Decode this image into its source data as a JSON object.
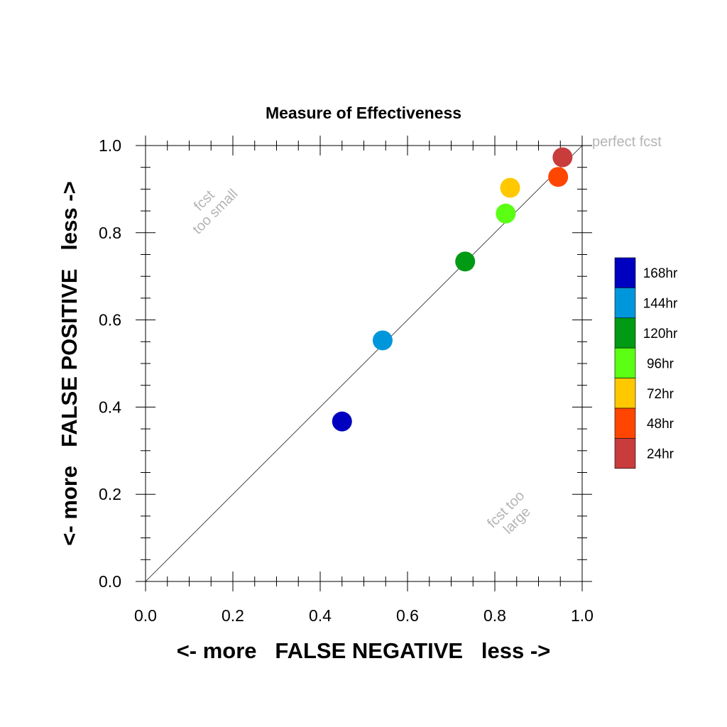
{
  "chart_data": {
    "type": "scatter",
    "title": "Measure of Effectiveness",
    "xlabel": "<- more   FALSE NEGATIVE   less ->",
    "ylabel": "<- more   FALSE POSITIVE   less ->",
    "xlim": [
      0.0,
      1.0
    ],
    "ylim": [
      0.0,
      1.0
    ],
    "xticks": [
      "0.0",
      "0.2",
      "0.4",
      "0.6",
      "0.8",
      "1.0"
    ],
    "yticks": [
      "0.0",
      "0.2",
      "0.4",
      "0.6",
      "0.8",
      "1.0"
    ],
    "grid": false,
    "reference_line": {
      "from": [
        0,
        0
      ],
      "to": [
        1,
        1
      ],
      "label": "perfect fcst"
    },
    "annotations": {
      "upper_left": [
        "fcst",
        "too small"
      ],
      "lower_right": [
        "fcst too",
        "large"
      ]
    },
    "legend_position": "right",
    "series": [
      {
        "name": "168hr",
        "color": "#0000c0",
        "x": 0.45,
        "y": 0.367
      },
      {
        "name": "144hr",
        "color": "#0096dc",
        "x": 0.543,
        "y": 0.553
      },
      {
        "name": "120hr",
        "color": "#009a14",
        "x": 0.732,
        "y": 0.734
      },
      {
        "name": "96hr",
        "color": "#5aff14",
        "x": 0.825,
        "y": 0.844
      },
      {
        "name": "72hr",
        "color": "#ffc800",
        "x": 0.835,
        "y": 0.903
      },
      {
        "name": "48hr",
        "color": "#ff4600",
        "x": 0.945,
        "y": 0.928
      },
      {
        "name": "24hr",
        "color": "#c83c3c",
        "x": 0.955,
        "y": 0.973
      }
    ]
  }
}
